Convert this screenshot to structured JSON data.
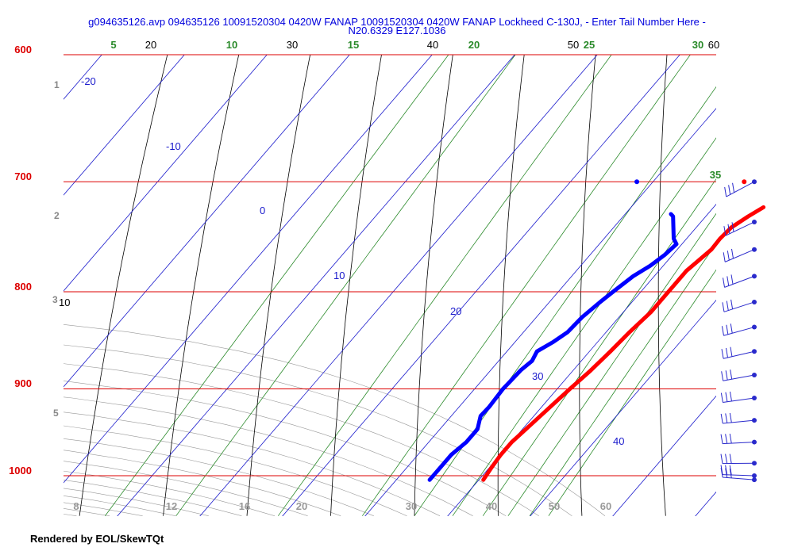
{
  "header": {
    "title_line1": "g094635126.avp 094635126 10091520304 0420W FANAP 10091520304 0420W FANAP Lockheed C-130J, - Enter Tail Number Here -",
    "title_line2": "N20.6329 E127.1036"
  },
  "footer": {
    "text": "Rendered by EOL/SkewTQt"
  },
  "colors": {
    "temperature": "#ff0000",
    "dewpoint": "#0000ff",
    "isobar": "#dd0000",
    "isotherm": "#1a1acc",
    "mixing_ratio": "#2a8a2a",
    "dry_adiabat": "#000000",
    "moist_adiabat": "#999999",
    "wind_barb": "#2a2acc"
  },
  "chart_data": {
    "type": "skew-t",
    "pressure_levels_hPa": [
      600,
      700,
      800,
      900,
      1000
    ],
    "pressure_labels": [
      "600",
      "700",
      "800",
      "900",
      "1000"
    ],
    "height_labels": [
      "1",
      "2",
      "3",
      "5"
    ],
    "isotherm_labels": [
      "-20",
      "-10",
      "0",
      "10",
      "20",
      "30",
      "40"
    ],
    "dry_adiabat_labels": [
      "20",
      "30",
      "40",
      "50",
      "60",
      "10"
    ],
    "mixing_ratio_labels": [
      "5",
      "10",
      "15",
      "20",
      "25",
      "30",
      "35"
    ],
    "moist_adiabat_labels": [
      "8",
      "12",
      "16",
      "20",
      "30",
      "40",
      "50",
      "60"
    ],
    "surface_obs": {
      "temperature_C": 26,
      "dewpoint_C": 13,
      "pressure_hPa": 700
    },
    "temperature_profile": [
      [
        1005,
        25.5
      ],
      [
        990,
        25.2
      ],
      [
        975,
        25.0
      ],
      [
        960,
        25.0
      ],
      [
        940,
        25.5
      ],
      [
        920,
        26.0
      ],
      [
        900,
        26.5
      ],
      [
        880,
        27.1
      ],
      [
        860,
        27.5
      ],
      [
        840,
        27.8
      ],
      [
        820,
        28.3
      ],
      [
        800,
        28.3
      ],
      [
        780,
        28.3
      ],
      [
        770,
        28.7
      ],
      [
        760,
        29.1
      ],
      [
        750,
        29.0
      ],
      [
        740,
        29.2
      ],
      [
        730,
        30.1
      ],
      [
        722,
        31.0
      ]
    ],
    "dewpoint_profile": [
      [
        1005,
        19.0
      ],
      [
        990,
        19.0
      ],
      [
        975,
        19.0
      ],
      [
        960,
        19.5
      ],
      [
        945,
        19.5
      ],
      [
        930,
        18.5
      ],
      [
        920,
        18.6
      ],
      [
        900,
        18.4
      ],
      [
        890,
        18.5
      ],
      [
        880,
        18.6
      ],
      [
        870,
        19.0
      ],
      [
        860,
        18.6
      ],
      [
        850,
        19.6
      ],
      [
        840,
        20.3
      ],
      [
        825,
        20.5
      ],
      [
        810,
        21.1
      ],
      [
        800,
        21.6
      ],
      [
        785,
        22.4
      ],
      [
        775,
        23.4
      ],
      [
        765,
        24.0
      ],
      [
        755,
        24.3
      ],
      [
        750,
        23.4
      ],
      [
        740,
        22.2
      ],
      [
        730,
        21.0
      ],
      [
        728,
        20.5
      ]
    ],
    "wind_barbs_hPa": [
      700,
      735,
      760,
      785,
      810,
      835,
      860,
      885,
      910,
      935,
      960,
      985,
      1000,
      1005
    ]
  }
}
